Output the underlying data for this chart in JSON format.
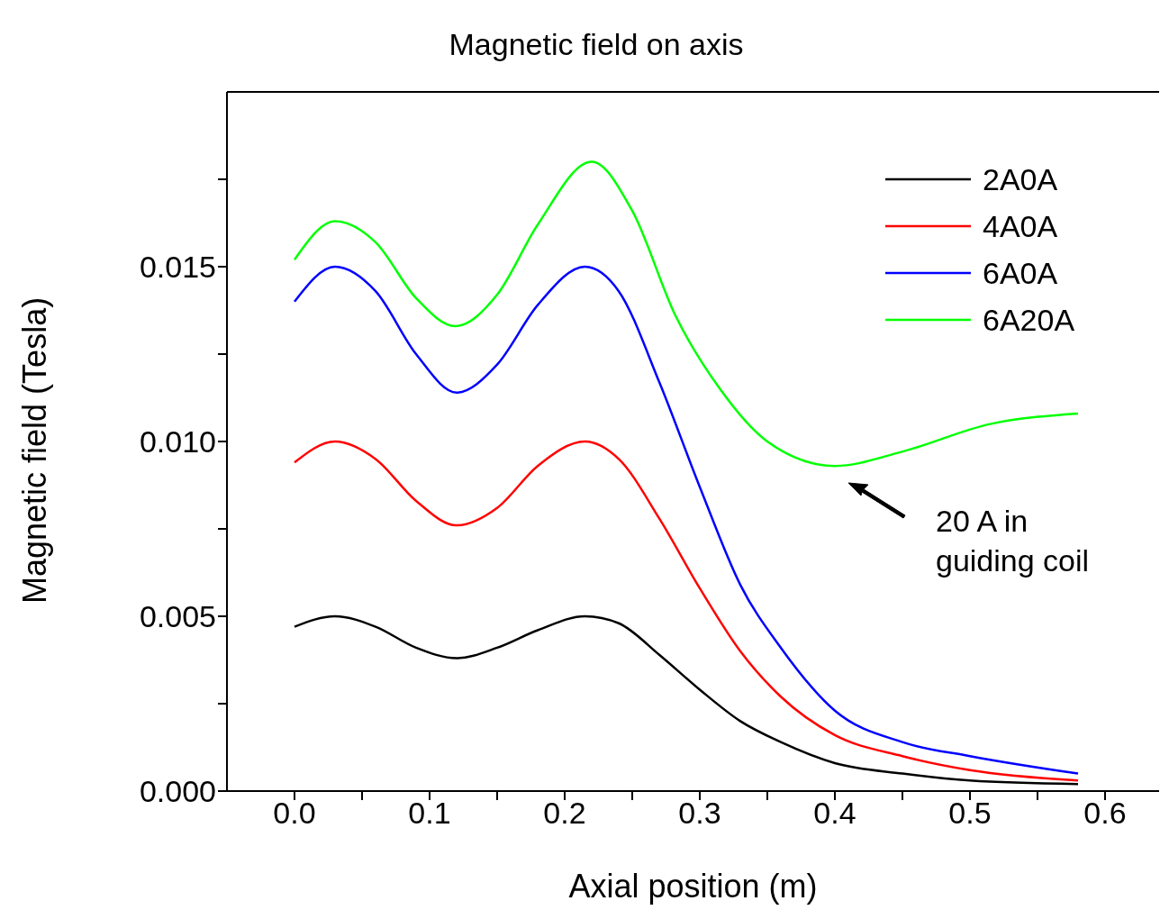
{
  "chart_data": {
    "type": "line",
    "title": "Magnetic field on axis",
    "xlabel": "Axial position (m)",
    "ylabel": "Magnetic field (Tesla)",
    "xlim": [
      -0.05,
      0.64
    ],
    "xticks": [
      {
        "value": 0,
        "label": "0.0"
      },
      {
        "value": 0.05,
        "label": null
      },
      {
        "value": 0.1,
        "label": "0.1"
      },
      {
        "value": 0.15,
        "label": null
      },
      {
        "value": 0.2,
        "label": "0.2"
      },
      {
        "value": 0.25,
        "label": null
      },
      {
        "value": 0.3,
        "label": "0.3"
      },
      {
        "value": 0.35,
        "label": null
      },
      {
        "value": 0.4,
        "label": "0.4"
      },
      {
        "value": 0.45,
        "label": null
      },
      {
        "value": 0.5,
        "label": "0.5"
      },
      {
        "value": 0.55,
        "label": null
      },
      {
        "value": 0.6,
        "label": "0.6"
      }
    ],
    "ylim": [
      0,
      0.02
    ],
    "yticks": [
      {
        "value": 0,
        "label": "0.000"
      },
      {
        "value": 0.0025,
        "label": null
      },
      {
        "value": 0.005,
        "label": "0.005"
      },
      {
        "value": 0.0075,
        "label": null
      },
      {
        "value": 0.01,
        "label": "0.010"
      },
      {
        "value": 0.0125,
        "label": null
      },
      {
        "value": 0.015,
        "label": "0.015"
      },
      {
        "value": 0.0175,
        "label": null
      }
    ],
    "legend": "top right",
    "marker": "none",
    "line_style": "solid",
    "grid": false,
    "series": [
      {
        "name": "2A0A",
        "color": "#000000",
        "x": [
          0,
          0.03,
          0.06,
          0.09,
          0.12,
          0.15,
          0.18,
          0.215,
          0.24,
          0.27,
          0.3,
          0.33,
          0.36,
          0.4,
          0.45,
          0.5,
          0.58
        ],
        "values": [
          0.0047,
          0.005,
          0.0047,
          0.0041,
          0.0038,
          0.0041,
          0.0046,
          0.005,
          0.0048,
          0.0039,
          0.0029,
          0.002,
          0.0014,
          0.0008,
          0.0005,
          0.0003,
          0.0002
        ]
      },
      {
        "name": "4A0A",
        "color": "#ff0000",
        "x": [
          0,
          0.03,
          0.06,
          0.09,
          0.12,
          0.15,
          0.18,
          0.215,
          0.24,
          0.27,
          0.3,
          0.33,
          0.36,
          0.4,
          0.45,
          0.5,
          0.58
        ],
        "values": [
          0.0094,
          0.01,
          0.0095,
          0.0083,
          0.0076,
          0.0081,
          0.0093,
          0.01,
          0.0095,
          0.0078,
          0.0058,
          0.004,
          0.0027,
          0.0016,
          0.001,
          0.0006,
          0.0003
        ]
      },
      {
        "name": "6A0A",
        "color": "#0000ff",
        "x": [
          0,
          0.03,
          0.06,
          0.09,
          0.12,
          0.15,
          0.18,
          0.215,
          0.24,
          0.27,
          0.3,
          0.33,
          0.36,
          0.4,
          0.45,
          0.5,
          0.58
        ],
        "values": [
          0.014,
          0.015,
          0.0143,
          0.0125,
          0.0114,
          0.0122,
          0.0139,
          0.015,
          0.0143,
          0.0117,
          0.0087,
          0.0059,
          0.0041,
          0.0023,
          0.0014,
          0.001,
          0.0005
        ]
      },
      {
        "name": "6A20A",
        "color": "#00ff00",
        "x": [
          0,
          0.03,
          0.06,
          0.09,
          0.119,
          0.15,
          0.18,
          0.22,
          0.25,
          0.282,
          0.315,
          0.35,
          0.4,
          0.449,
          0.515,
          0.58
        ],
        "values": [
          0.0152,
          0.0163,
          0.0157,
          0.0141,
          0.0133,
          0.0142,
          0.0162,
          0.018,
          0.0166,
          0.0136,
          0.0115,
          0.01,
          0.0093,
          0.0097,
          0.0105,
          0.0108
        ]
      }
    ],
    "annotations": [
      "20 A in\nguiding coil"
    ]
  }
}
